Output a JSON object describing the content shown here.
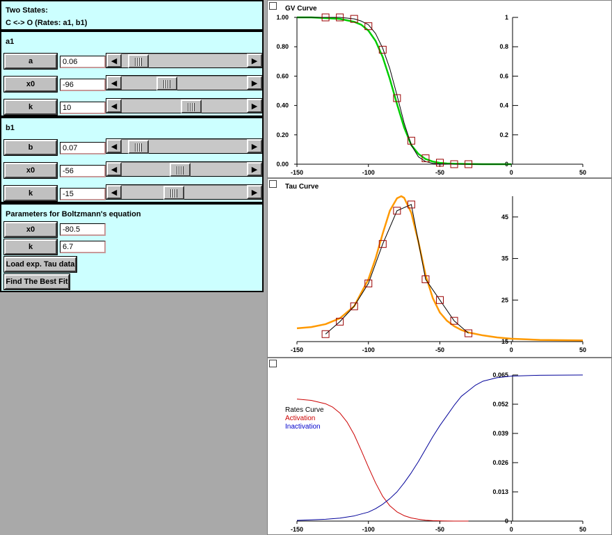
{
  "left": {
    "header": {
      "line1": "Two States:",
      "line2": "C <-> O (Rates: a1, b1)"
    },
    "a1": {
      "title": "a1",
      "rows": [
        {
          "label": "a",
          "value": "0.06",
          "pos": 0.06
        },
        {
          "label": "x0",
          "value": "-96",
          "pos": 0.33
        },
        {
          "label": "k",
          "value": "10",
          "pos": 0.57
        }
      ]
    },
    "b1": {
      "title": "b1",
      "rows": [
        {
          "label": "b",
          "value": "0.07",
          "pos": 0.06
        },
        {
          "label": "x0",
          "value": "-56",
          "pos": 0.46
        },
        {
          "label": "k",
          "value": "-15",
          "pos": 0.4
        }
      ]
    },
    "boltzmann": {
      "title": "Parameters for Boltzmann's equation",
      "x0_label": "x0",
      "x0_value": "-80.5",
      "k_label": "k",
      "k_value": "6.7",
      "load_label": "Load exp. Tau data",
      "fit_label": "Find The Best Fit"
    }
  },
  "charts": {
    "gv": {
      "title": "GV Curve"
    },
    "tau": {
      "title": "Tau Curve"
    },
    "rates": {
      "title": "Rates Curve",
      "activation": "Activation",
      "inactivation": "Inactivation"
    }
  },
  "chart_data": [
    {
      "type": "line",
      "title": "GV Curve",
      "xlim": [
        -150,
        50
      ],
      "xticks": [
        "-150",
        "-100",
        "-50",
        "0",
        "50"
      ],
      "ylim": [
        0,
        1
      ],
      "yticks_left": [
        "0.00",
        "0.20",
        "0.40",
        "0.60",
        "0.80",
        "1.00"
      ],
      "yticks_right": [
        "0",
        "0.2",
        "0.4",
        "0.6",
        "0.8",
        "1"
      ],
      "series": [
        {
          "color": "#00cc00",
          "x": [
            -150,
            -140,
            -130,
            -120,
            -115,
            -110,
            -105,
            -100,
            -95,
            -90,
            -85,
            -80,
            -75,
            -70,
            -65,
            -60,
            -55,
            -50,
            -45,
            -40,
            -30,
            -20,
            -10,
            0
          ],
          "y": [
            1.0,
            1.0,
            0.995,
            0.99,
            0.98,
            0.97,
            0.95,
            0.91,
            0.84,
            0.73,
            0.58,
            0.41,
            0.25,
            0.13,
            0.07,
            0.035,
            0.018,
            0.009,
            0.005,
            0.003,
            0.001,
            0.0,
            0.0,
            0.0
          ]
        },
        {
          "color": "#000000",
          "x": [
            -150,
            -140,
            -130,
            -120,
            -115,
            -110,
            -105,
            -100,
            -95,
            -90,
            -85,
            -80,
            -75,
            -70,
            -65,
            -60,
            -55,
            -50,
            -45,
            -40,
            -30,
            -20,
            -10,
            0
          ],
          "y": [
            1.0,
            1.0,
            1.0,
            1.0,
            0.995,
            0.99,
            0.975,
            0.95,
            0.89,
            0.79,
            0.65,
            0.47,
            0.28,
            0.13,
            0.05,
            0.018,
            0.006,
            0.002,
            0.001,
            0.0,
            0.0,
            0.0,
            0.0,
            0.0
          ]
        },
        {
          "marker": "square",
          "color": "#990000",
          "x": [
            -130,
            -120,
            -110,
            -100,
            -90,
            -80,
            -70,
            -60,
            -50,
            -40,
            -30
          ],
          "y": [
            1.0,
            1.0,
            0.99,
            0.94,
            0.78,
            0.45,
            0.16,
            0.04,
            0.01,
            0.0,
            0.0
          ]
        }
      ]
    },
    {
      "type": "line",
      "title": "Tau Curve",
      "xlim": [
        -150,
        50
      ],
      "xticks": [
        "-150",
        "-100",
        "-50",
        "0",
        "50"
      ],
      "ylim": [
        15,
        50
      ],
      "yticks_right": [
        "15",
        "25",
        "35",
        "45"
      ],
      "series": [
        {
          "color": "#ff9900",
          "x": [
            -150,
            -140,
            -130,
            -120,
            -110,
            -100,
            -95,
            -90,
            -85,
            -80,
            -77,
            -75,
            -70,
            -65,
            -60,
            -55,
            -50,
            -45,
            -40,
            -35,
            -30,
            -20,
            -10,
            0,
            20,
            50
          ],
          "y": [
            18.2,
            18.5,
            19.2,
            20.6,
            23.5,
            30.0,
            35.0,
            41.0,
            46.5,
            49.5,
            50.0,
            49.6,
            46.0,
            39.0,
            31.0,
            25.5,
            22.0,
            20.0,
            18.7,
            17.8,
            17.2,
            16.5,
            16.0,
            15.7,
            15.4,
            15.3
          ]
        },
        {
          "marker": "square",
          "color": "#990000",
          "x": [
            -130,
            -120,
            -110,
            -100,
            -90,
            -80,
            -70,
            -60,
            -50,
            -40,
            -30
          ],
          "y": [
            16.8,
            19.8,
            23.5,
            29.0,
            38.5,
            46.5,
            48.0,
            30.0,
            25.0,
            20.0,
            17.0
          ]
        }
      ]
    },
    {
      "type": "line",
      "title": "Rates Curve",
      "xlim": [
        -150,
        50
      ],
      "xticks": [
        "-150",
        "-100",
        "-50",
        "0",
        "50"
      ],
      "ylim": [
        0,
        0.065
      ],
      "yticks_right": [
        "0",
        "0.013",
        "0.026",
        "0.039",
        "0.052",
        "0.065"
      ],
      "series": [
        {
          "name": "Activation",
          "color": "#cc0000",
          "x": [
            -150,
            -140,
            -130,
            -125,
            -120,
            -115,
            -110,
            -105,
            -100,
            -95,
            -90,
            -85,
            -80,
            -75,
            -70,
            -65,
            -60,
            -55,
            -50,
            -40,
            -30
          ],
          "y": [
            0.0543,
            0.0537,
            0.0522,
            0.0507,
            0.0481,
            0.0441,
            0.0385,
            0.0314,
            0.024,
            0.017,
            0.011,
            0.0068,
            0.0041,
            0.0024,
            0.0014,
            0.0008,
            0.0004,
            0.0002,
            0.0001,
            0.0,
            0.0
          ]
        },
        {
          "name": "Inactivation",
          "color": "#000099",
          "x": [
            -150,
            -130,
            -120,
            -110,
            -100,
            -95,
            -90,
            -85,
            -80,
            -75,
            -70,
            -65,
            -60,
            -55,
            -50,
            -45,
            -40,
            -35,
            -30,
            -25,
            -20,
            -10,
            0,
            20,
            50
          ],
          "y": [
            0.0003,
            0.0008,
            0.0013,
            0.0023,
            0.004,
            0.0055,
            0.0075,
            0.01,
            0.013,
            0.017,
            0.0215,
            0.0265,
            0.032,
            0.0375,
            0.0425,
            0.047,
            0.0515,
            0.0555,
            0.058,
            0.0605,
            0.0622,
            0.0638,
            0.0645,
            0.0649,
            0.065
          ]
        }
      ]
    }
  ]
}
